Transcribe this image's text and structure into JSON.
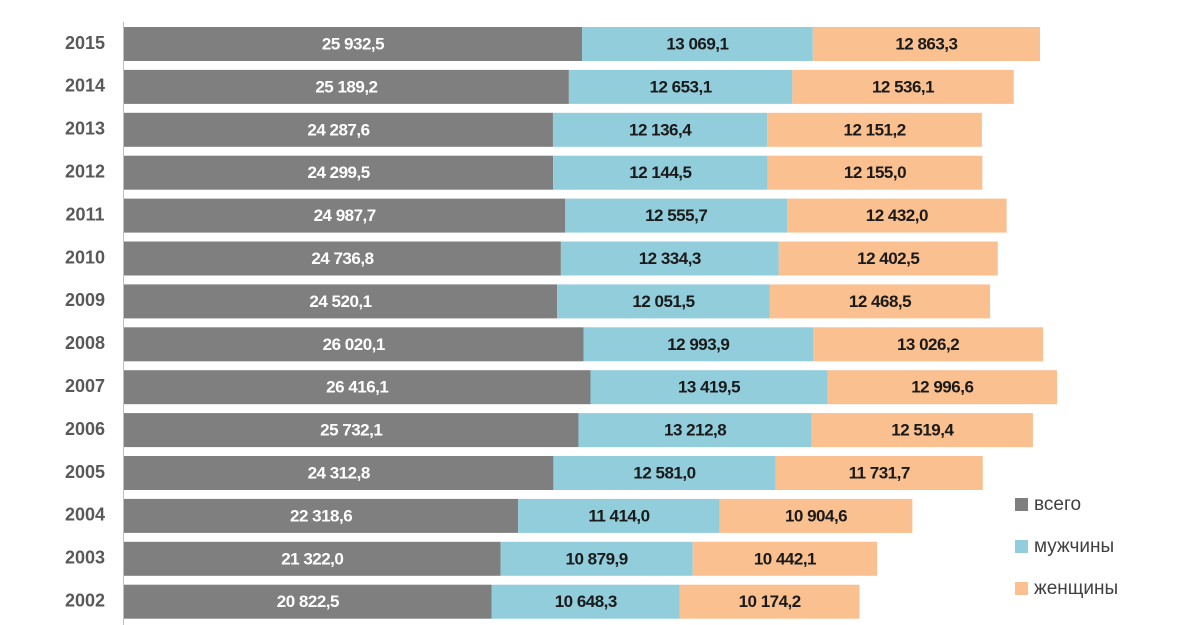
{
  "chart_data": {
    "type": "bar",
    "orientation": "horizontal",
    "stacked": true,
    "legend": "right",
    "categories": [
      "2015",
      "2014",
      "2013",
      "2012",
      "2011",
      "2010",
      "2009",
      "2008",
      "2007",
      "2006",
      "2005",
      "2004",
      "2003",
      "2002"
    ],
    "series": [
      {
        "name": "всего",
        "color": "#7f7f7f",
        "values": [
          25932.5,
          25189.2,
          24287.6,
          24299.5,
          24987.7,
          24736.8,
          24520.1,
          26020.1,
          26416.1,
          25732.1,
          24312.8,
          22318.6,
          21322.0,
          20822.5
        ],
        "value_labels": [
          "25 932,5",
          "25 189,2",
          "24 287,6",
          "24 299,5",
          "24 987,7",
          "24 736,8",
          "24 520,1",
          "26 020,1",
          "26 416,1",
          "25 732,1",
          "24 312,8",
          "22 318,6",
          "21 322,0",
          "20 822,5"
        ]
      },
      {
        "name": "мужчины",
        "color": "#92cddc",
        "values": [
          13069.1,
          12653.1,
          12136.4,
          12144.5,
          12555.7,
          12334.3,
          12051.5,
          12993.9,
          13419.5,
          13212.8,
          12581.0,
          11414.0,
          10879.9,
          10648.3
        ],
        "value_labels": [
          "13 069,1",
          "12 653,1",
          "12 136,4",
          "12 144,5",
          "12 555,7",
          "12 334,3",
          "12 051,5",
          "12 993,9",
          "13 419,5",
          "13 212,8",
          "12 581,0",
          "11 414,0",
          "10 879,9",
          "10 648,3"
        ]
      },
      {
        "name": "женщины",
        "color": "#fac090",
        "values": [
          12863.3,
          12536.1,
          12151.2,
          12155.0,
          12432.0,
          12402.5,
          12468.5,
          13026.2,
          12996.6,
          12519.4,
          11731.7,
          10904.6,
          10442.1,
          10174.2
        ],
        "value_labels": [
          "12 863,3",
          "12 536,1",
          "12 151,2",
          "12 155,0",
          "12 432,0",
          "12 402,5",
          "12 468,5",
          "13 026,2",
          "12 996,6",
          "12 519,4",
          "11 731,7",
          "10 904,6",
          "10 442,1",
          "10 174,2"
        ]
      }
    ]
  }
}
